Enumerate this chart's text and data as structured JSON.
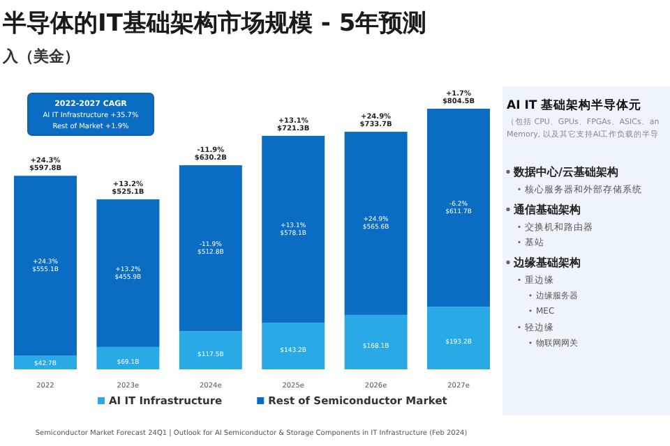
{
  "chart_data": {
    "type": "bar",
    "stacked": true,
    "title": "半导体的IT基础架构市场规模 - 5年预测",
    "subtitle": "入（美金）",
    "categories": [
      "2022",
      "2023e",
      "2024e",
      "2025e",
      "2026e",
      "2027e"
    ],
    "series": [
      {
        "name": "AI IT Infrastructure",
        "color": "#29a9e6",
        "values": [
          42.7,
          69.1,
          117.5,
          143.2,
          168.1,
          193.2
        ],
        "value_labels": [
          "$42.7B",
          "$69.1B",
          "$117.5B",
          "$143.2B",
          "$168.1B",
          "$193.2B"
        ]
      },
      {
        "name": "Rest of Semiconductor Market",
        "color": "#0b6cc4",
        "values": [
          555.1,
          455.9,
          512.8,
          578.1,
          565.6,
          611.7
        ],
        "value_labels": [
          "$555.1B",
          "$455.9B",
          "$512.8B",
          "$578.1B",
          "$565.6B",
          "$611.7B"
        ]
      }
    ],
    "totals": [
      "+24.3% $597.8B",
      "+13.2% $525.1B",
      "-11.9% $630.2B",
      "+13.1% $721.3B",
      "+24.9% $733.7B",
      "+1.7% $804.5B"
    ],
    "legend": "bottom",
    "annotations": [
      "2022-2027 CAGR",
      "AI IT Infrastructure +35.7%",
      "Rest of Market +1.9%",
      "AI IT 基础架构半导体元",
      "（包括 CPU、GPUs、FPGAs、ASICs、an",
      "Memory, 以及其它支持AI工作负载的半导",
      "数据中心/云基础架构",
      "核心服务器和外部存储系统",
      "通信基础架构",
      "交换机和路由器",
      "基站",
      "边缘基础架构",
      "重边缘",
      "边缘服务器",
      "MEC",
      "轻边缘",
      "物联网网关",
      "Semiconductor Market Forecast 24Q1 | Outlook for AI Semiconductor & Storage Components in IT Infrastructure (Feb 2024)",
      "+24.3%",
      "+13.2%",
      "-11.9%",
      "+13.1%",
      "+24.9%",
      "-6.2%"
    ]
  }
}
